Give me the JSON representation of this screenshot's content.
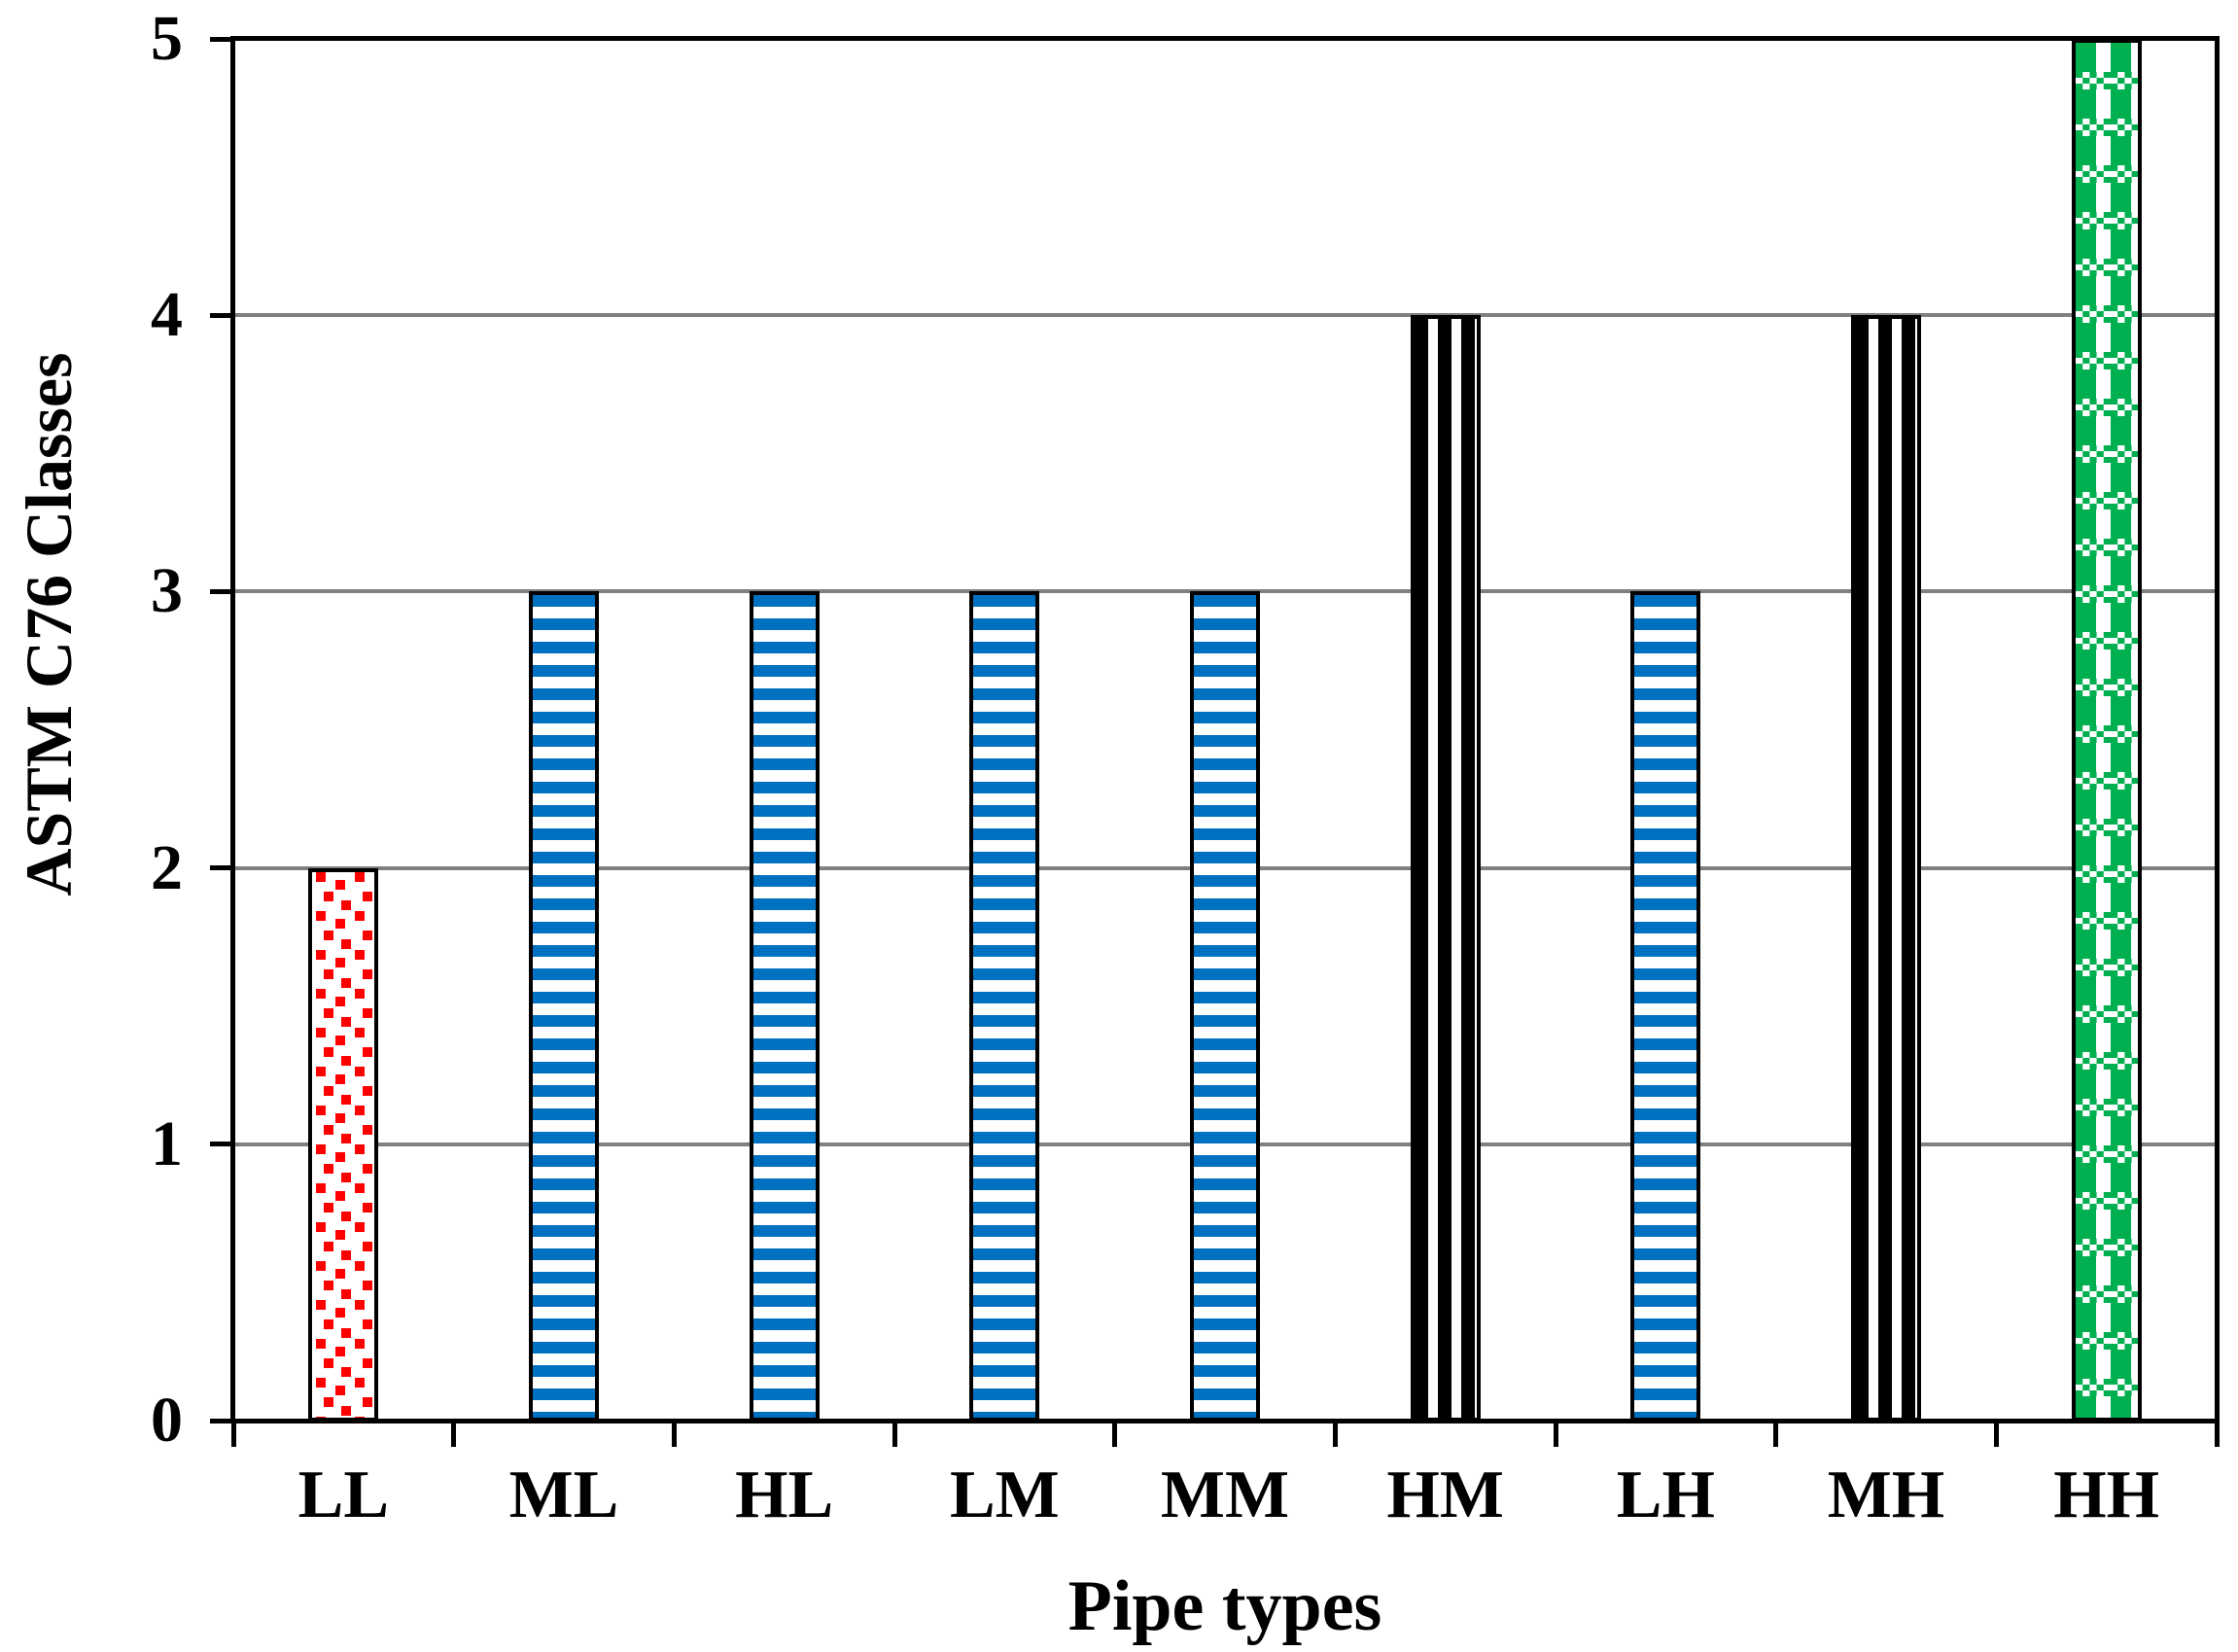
{
  "chart_data": {
    "type": "bar",
    "title": "",
    "xlabel": "Pipe types",
    "ylabel": "ASTM C76 Classes",
    "categories": [
      "LL",
      "ML",
      "HL",
      "LM",
      "MM",
      "HM",
      "LH",
      "MH",
      "HH"
    ],
    "values": [
      2,
      3,
      3,
      3,
      3,
      4,
      3,
      4,
      5
    ],
    "ylim": [
      0,
      5
    ],
    "yticks": [
      "0",
      "1",
      "2",
      "3",
      "4",
      "5"
    ],
    "grid": {
      "horizontal": true,
      "color": "#808080",
      "at": [
        1,
        2,
        3,
        4
      ]
    },
    "legend": "none",
    "axis_color": "#000000",
    "background": "#FFFFFF",
    "bars": [
      {
        "category": "LL",
        "value": 2,
        "pattern": "red-confetti",
        "pattern_color": "#FF0000"
      },
      {
        "category": "ML",
        "value": 3,
        "pattern": "blue-horizontal-stripes",
        "pattern_color": "#0070C0"
      },
      {
        "category": "HL",
        "value": 3,
        "pattern": "blue-horizontal-stripes",
        "pattern_color": "#0070C0"
      },
      {
        "category": "LM",
        "value": 3,
        "pattern": "blue-horizontal-stripes",
        "pattern_color": "#0070C0"
      },
      {
        "category": "MM",
        "value": 3,
        "pattern": "blue-horizontal-stripes",
        "pattern_color": "#0070C0"
      },
      {
        "category": "HM",
        "value": 4,
        "pattern": "black-vertical-stripes",
        "pattern_color": "#000000"
      },
      {
        "category": "LH",
        "value": 3,
        "pattern": "blue-horizontal-stripes",
        "pattern_color": "#0070C0"
      },
      {
        "category": "MH",
        "value": 4,
        "pattern": "black-vertical-stripes",
        "pattern_color": "#000000"
      },
      {
        "category": "HH",
        "value": 5,
        "pattern": "green-checker",
        "pattern_color": "#00B050"
      }
    ]
  }
}
